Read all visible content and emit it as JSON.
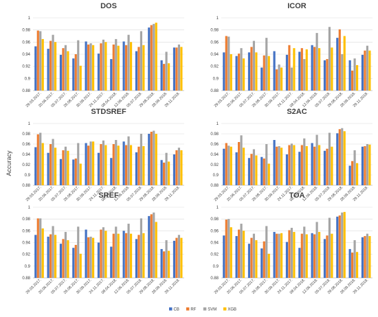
{
  "ylabel": "Accuracy",
  "chart_data": [
    {
      "type": "bar",
      "title": "DOS",
      "ylim": [
        0.88,
        1.0
      ],
      "yticks": [
        "0.88",
        "0.9",
        "0.92",
        "0.94",
        "0.96",
        "0.98",
        "1"
      ],
      "categories": [
        "29.03.2017.",
        "20.06.2017.",
        "05.07.2017.",
        "26.08.2017.",
        "30.09.2017.",
        "24.11.2017.",
        "08.04.2018.",
        "12.06.2018.",
        "05.07.2018.",
        "29.08.2018.",
        "28.09.2018.",
        "29.11.2018."
      ],
      "series": [
        {
          "name": "CB",
          "values": [
            0.953,
            0.949,
            0.939,
            0.933,
            0.961,
            0.941,
            0.932,
            0.961,
            0.945,
            0.984,
            0.93,
            0.951
          ]
        },
        {
          "name": "RF",
          "values": [
            0.979,
            0.962,
            0.95,
            0.94,
            0.956,
            0.958,
            0.956,
            0.955,
            0.952,
            0.988,
            0.924,
            0.951
          ]
        },
        {
          "name": "SVM",
          "values": [
            0.978,
            0.972,
            0.955,
            0.963,
            0.958,
            0.964,
            0.965,
            0.972,
            0.978,
            0.99,
            0.944,
            0.956
          ]
        },
        {
          "name": "XGB",
          "values": [
            0.965,
            0.96,
            0.945,
            0.921,
            0.955,
            0.96,
            0.954,
            0.96,
            0.955,
            0.992,
            0.925,
            0.952
          ]
        }
      ]
    },
    {
      "type": "bar",
      "title": "ICOR",
      "ylim": [
        0.88,
        1.0
      ],
      "yticks": [
        "0.88",
        "0.9",
        "0.92",
        "0.94",
        "0.96",
        "0.98",
        "1"
      ],
      "categories": [
        "29.03.2017.",
        "20.06.2017.",
        "05.07.2017.",
        "26.08.2017.",
        "30.09.2017.",
        "24.11.2017.",
        "08.04.2018.",
        "12.06.2018.",
        "05.07.2018.",
        "29.08.2018.",
        "28.09.2018.",
        "29.11.2018."
      ],
      "series": [
        {
          "name": "CB",
          "values": [
            0.943,
            0.937,
            0.943,
            0.918,
            0.945,
            0.939,
            0.944,
            0.955,
            0.93,
            0.967,
            0.93,
            0.939
          ]
        },
        {
          "name": "RF",
          "values": [
            0.97,
            0.941,
            0.952,
            0.938,
            0.915,
            0.955,
            0.95,
            0.952,
            0.932,
            0.981,
            0.913,
            0.946
          ]
        },
        {
          "name": "SVM",
          "values": [
            0.969,
            0.95,
            0.962,
            0.967,
            0.923,
            0.918,
            0.932,
            0.975,
            0.985,
            0.94,
            0.933,
            0.954
          ]
        },
        {
          "name": "XGB",
          "values": [
            0.94,
            0.933,
            0.943,
            0.937,
            0.918,
            0.95,
            0.948,
            0.95,
            0.951,
            0.97,
            0.922,
            0.946
          ]
        }
      ]
    },
    {
      "type": "bar",
      "title": "STDSREF",
      "ylim": [
        0.88,
        1.0
      ],
      "yticks": [
        "0.88",
        "0.9",
        "0.92",
        "0.94",
        "0.96",
        "0.98",
        "1"
      ],
      "categories": [
        "29.03.2017.",
        "20.06.2017.",
        "05.07.2017.",
        "26.08.2017.",
        "30.09.2017.",
        "24.11.2017.",
        "08.04.2018.",
        "12.06.2018.",
        "05.07.2018.",
        "29.08.2018.",
        "28.09.2018.",
        "29.11.2018."
      ],
      "series": [
        {
          "name": "CB",
          "values": [
            0.954,
            0.943,
            0.931,
            0.93,
            0.962,
            0.943,
            0.933,
            0.965,
            0.944,
            0.98,
            0.929,
            0.94
          ]
        },
        {
          "name": "RF",
          "values": [
            0.979,
            0.96,
            0.948,
            0.932,
            0.957,
            0.96,
            0.96,
            0.958,
            0.955,
            0.984,
            0.924,
            0.948
          ]
        },
        {
          "name": "SVM",
          "values": [
            0.982,
            0.97,
            0.955,
            0.962,
            0.965,
            0.967,
            0.968,
            0.975,
            0.98,
            0.986,
            0.943,
            0.953
          ]
        },
        {
          "name": "XGB",
          "values": [
            0.962,
            0.953,
            0.947,
            0.922,
            0.965,
            0.958,
            0.957,
            0.958,
            0.956,
            0.98,
            0.926,
            0.948
          ]
        }
      ]
    },
    {
      "type": "bar",
      "title": "S2AC",
      "ylim": [
        0.88,
        1.0
      ],
      "yticks": [
        "0.88",
        "0.9",
        "0.92",
        "0.94",
        "0.96",
        "0.98",
        "1"
      ],
      "categories": [
        "29.03.2017.",
        "20.06.2017.",
        "05.07.2017.",
        "26.08.2017.",
        "30.09.2017.",
        "24.11.2017.",
        "08.04.2018.",
        "12.06.2018.",
        "05.07.2018.",
        "29.08.2018.",
        "28.09.2018.",
        "29.11.2018."
      ],
      "series": [
        {
          "name": "CB",
          "values": [
            0.951,
            0.944,
            0.933,
            0.935,
            0.968,
            0.94,
            0.945,
            0.962,
            0.947,
            0.981,
            0.918,
            0.955
          ]
        },
        {
          "name": "RF",
          "values": [
            0.962,
            0.964,
            0.941,
            0.932,
            0.955,
            0.958,
            0.958,
            0.955,
            0.951,
            0.989,
            0.927,
            0.956
          ]
        },
        {
          "name": "SVM",
          "values": [
            0.957,
            0.977,
            0.95,
            0.96,
            0.956,
            0.961,
            0.971,
            0.978,
            0.982,
            0.991,
            0.948,
            0.96
          ]
        },
        {
          "name": "XGB",
          "values": [
            0.955,
            0.953,
            0.938,
            0.922,
            0.953,
            0.958,
            0.956,
            0.958,
            0.955,
            0.985,
            0.923,
            0.959
          ]
        }
      ]
    },
    {
      "type": "bar",
      "title": "SREF",
      "ylim": [
        0.88,
        1.0
      ],
      "yticks": [
        "0.88",
        "0.9",
        "0.92",
        "0.94",
        "0.96",
        "0.98",
        "1"
      ],
      "categories": [
        "29.03.2017.",
        "20.06.2017.",
        "05.07.2017.",
        "26.08.2017.",
        "30.09.2017.",
        "24.11.2017.",
        "08.04.2018.",
        "12.06.2018.",
        "05.07.2018.",
        "29.08.2018.",
        "28.09.2018.",
        "29.11.2018."
      ],
      "series": [
        {
          "name": "CB",
          "values": [
            0.953,
            0.95,
            0.938,
            0.931,
            0.962,
            0.94,
            0.933,
            0.96,
            0.946,
            0.985,
            0.929,
            0.943
          ]
        },
        {
          "name": "RF",
          "values": [
            0.981,
            0.954,
            0.946,
            0.936,
            0.949,
            0.962,
            0.955,
            0.956,
            0.953,
            0.988,
            0.925,
            0.948
          ]
        },
        {
          "name": "SVM",
          "values": [
            0.981,
            0.968,
            0.958,
            0.967,
            0.95,
            0.966,
            0.967,
            0.972,
            0.981,
            0.991,
            0.944,
            0.953
          ]
        },
        {
          "name": "XGB",
          "values": [
            0.964,
            0.953,
            0.944,
            0.921,
            0.948,
            0.96,
            0.955,
            0.955,
            0.956,
            0.975,
            0.926,
            0.948
          ]
        }
      ]
    },
    {
      "type": "bar",
      "title": "TOA",
      "ylim": [
        0.88,
        1.0
      ],
      "yticks": [
        "0.88",
        "0.9",
        "0.92",
        "0.94",
        "0.96",
        "0.98",
        "1"
      ],
      "categories": [
        "29.03.2017.",
        "20.06.2017.",
        "05.07.2017.",
        "26.08.2017.",
        "30.09.2017.",
        "24.11.2017.",
        "08.04.2018.",
        "12.06.2018.",
        "05.07.2018.",
        "29.08.2018.",
        "28.09.2018.",
        "29.11.2018."
      ],
      "series": [
        {
          "name": "CB",
          "values": [
            0.952,
            0.951,
            0.938,
            0.93,
            0.958,
            0.941,
            0.931,
            0.956,
            0.946,
            0.984,
            0.929,
            0.949
          ]
        },
        {
          "name": "RF",
          "values": [
            0.979,
            0.962,
            0.948,
            0.942,
            0.955,
            0.961,
            0.955,
            0.954,
            0.952,
            0.986,
            0.923,
            0.951
          ]
        },
        {
          "name": "SVM",
          "values": [
            0.98,
            0.972,
            0.955,
            0.968,
            0.955,
            0.965,
            0.967,
            0.975,
            0.982,
            0.991,
            0.944,
            0.955
          ]
        },
        {
          "name": "XGB",
          "values": [
            0.966,
            0.96,
            0.944,
            0.921,
            0.956,
            0.958,
            0.954,
            0.958,
            0.955,
            0.992,
            0.924,
            0.951
          ]
        }
      ]
    }
  ],
  "legend": {
    "placement": "bottom-right",
    "items": [
      {
        "name": "CB",
        "color": "#4472c4"
      },
      {
        "name": "RF",
        "color": "#ed7d31"
      },
      {
        "name": "SVM",
        "color": "#a5a5a5"
      },
      {
        "name": "XGB",
        "color": "#ffc000"
      }
    ]
  },
  "colors": {
    "grid": "#d9d9d9",
    "axis": "#bfbfbf",
    "text": "#404040"
  }
}
